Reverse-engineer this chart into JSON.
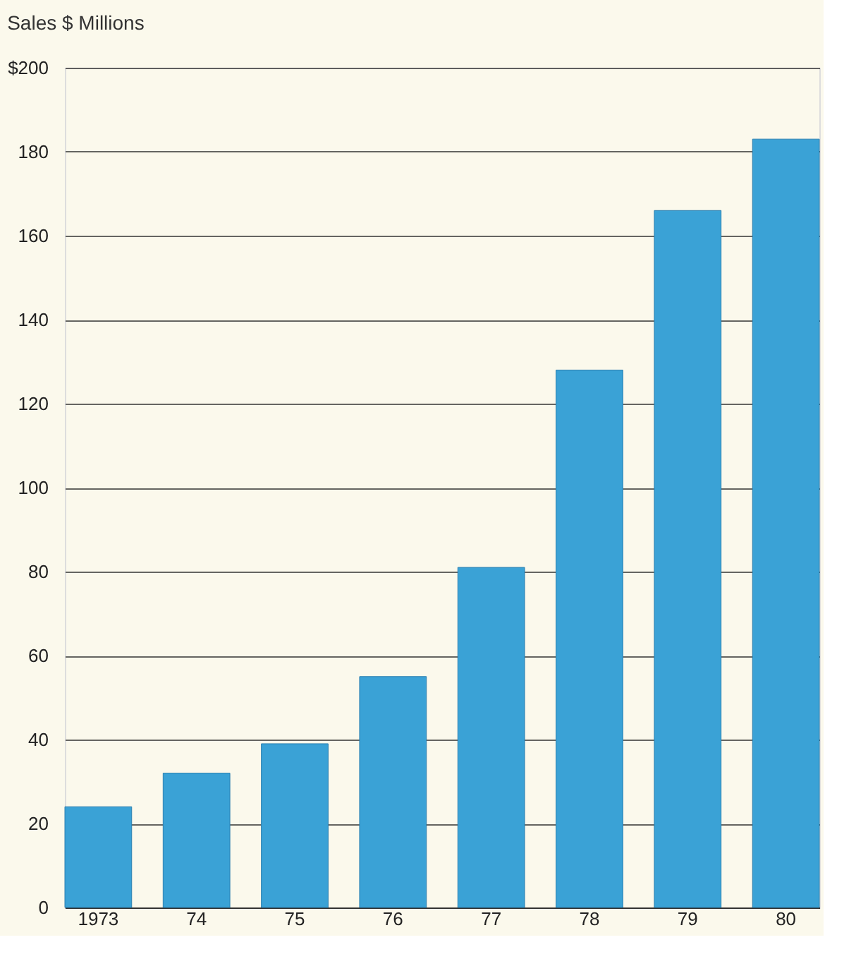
{
  "chart_data": {
    "type": "bar",
    "title": "Sales $ Millions",
    "categories": [
      "1973",
      "74",
      "75",
      "76",
      "77",
      "78",
      "79",
      "80"
    ],
    "values": [
      24,
      32,
      39,
      55,
      81,
      128,
      166,
      183
    ],
    "color": "#3aa2d6",
    "ylim": [
      0,
      200
    ],
    "yticks": [
      0,
      20,
      40,
      60,
      80,
      100,
      120,
      140,
      160,
      180,
      {
        "value": 200,
        "label": "$200"
      }
    ],
    "grid": "y"
  }
}
